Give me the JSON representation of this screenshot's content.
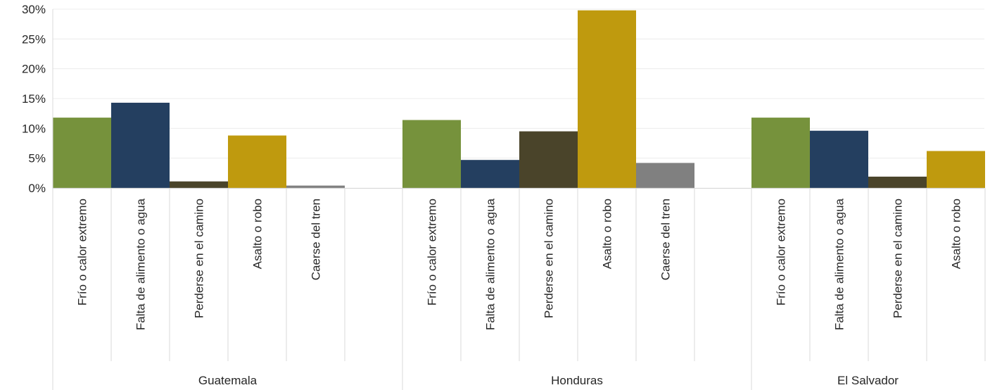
{
  "chart_data": {
    "type": "bar",
    "ylim": [
      0,
      30
    ],
    "y_ticks": [
      "0%",
      "5%",
      "10%",
      "15%",
      "20%",
      "25%",
      "30%"
    ],
    "grid": true,
    "colors": {
      "Frío o calor extremo": "#76923c",
      "Falta de alimento o agua": "#243f60",
      "Perderse en el camino": "#4a442a",
      "Asalto o robo": "#bf9a0e",
      "Caerse del tren": "#808080"
    },
    "groups": [
      {
        "name": "Guatemala",
        "categories": [
          "Frío o calor extremo",
          "Falta de alimento o agua",
          "Perderse en el camino",
          "Asalto o robo",
          "Caerse del tren"
        ],
        "values": [
          11.8,
          14.3,
          1.1,
          8.8,
          0.4
        ]
      },
      {
        "name": "Honduras",
        "categories": [
          "Frío o calor extremo",
          "Falta de alimento o agua",
          "Perderse en el camino",
          "Asalto o robo",
          "Caerse del tren"
        ],
        "values": [
          11.4,
          4.7,
          9.5,
          29.8,
          4.2
        ]
      },
      {
        "name": "El Salvador",
        "categories": [
          "Frío o calor extremo",
          "Falta de alimento o agua",
          "Perderse en el camino",
          "Asalto o robo"
        ],
        "values": [
          11.8,
          9.6,
          1.9,
          6.2
        ]
      }
    ]
  }
}
